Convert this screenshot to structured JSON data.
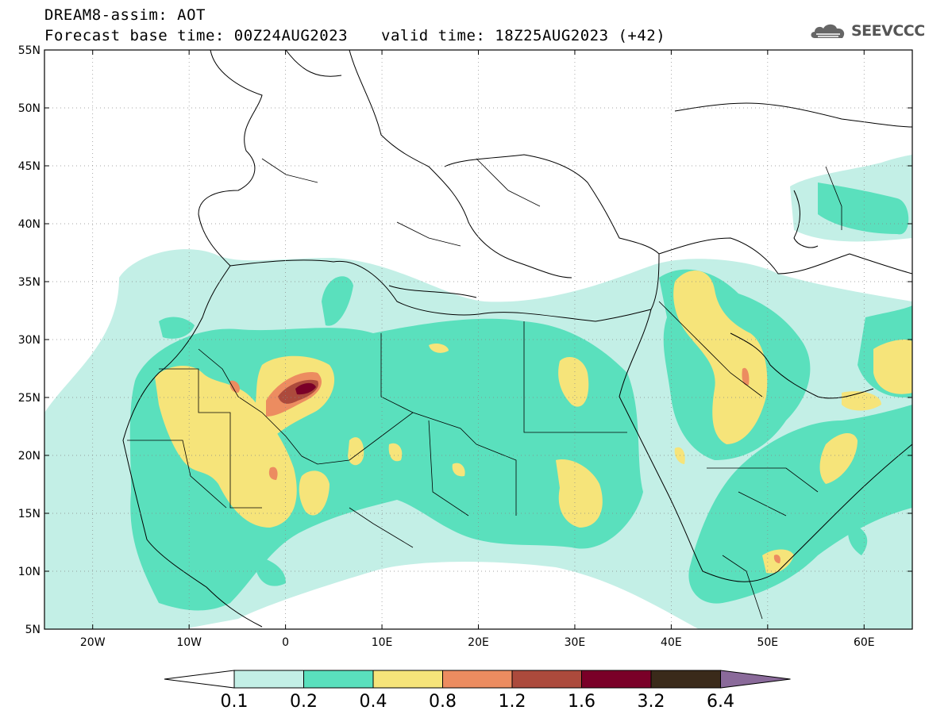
{
  "header": {
    "line1": "DREAM8-assim: AOT",
    "line2": "Forecast base time: 00Z24AUG2023",
    "valid": "valid time: 18Z25AUG2023 (+42)",
    "logo_text": "SEEVCCC",
    "logo_icon": "cloud-icon"
  },
  "map": {
    "lon_range": [
      -25,
      65
    ],
    "lat_range": [
      5,
      55
    ],
    "lat_labels": [
      "55N",
      "50N",
      "45N",
      "40N",
      "35N",
      "30N",
      "25N",
      "20N",
      "15N",
      "10N",
      "5N"
    ],
    "lat_values": [
      55,
      50,
      45,
      40,
      35,
      30,
      25,
      20,
      15,
      10,
      5
    ],
    "lon_labels": [
      "20W",
      "10W",
      "0",
      "10E",
      "20E",
      "30E",
      "40E",
      "50E",
      "60E"
    ],
    "lon_values": [
      -20,
      -10,
      0,
      10,
      20,
      30,
      40,
      50,
      60
    ]
  },
  "colorbar": {
    "labels": [
      "0.1",
      "0.2",
      "0.4",
      "0.8",
      "1.2",
      "1.6",
      "3.2",
      "6.4"
    ],
    "colors": [
      "#ffffff",
      "#c3efe6",
      "#5ae0bd",
      "#f6e47a",
      "#ec8c60",
      "#ac4a3c",
      "#7a0028",
      "#3a2a1a",
      "#8a6a9a"
    ]
  },
  "palette": {
    "c1": "#c3efe6",
    "c2": "#5ae0bd",
    "c3": "#f6e47a",
    "c4": "#ec8c60",
    "c5": "#ac4a3c",
    "c6": "#7a0028"
  }
}
